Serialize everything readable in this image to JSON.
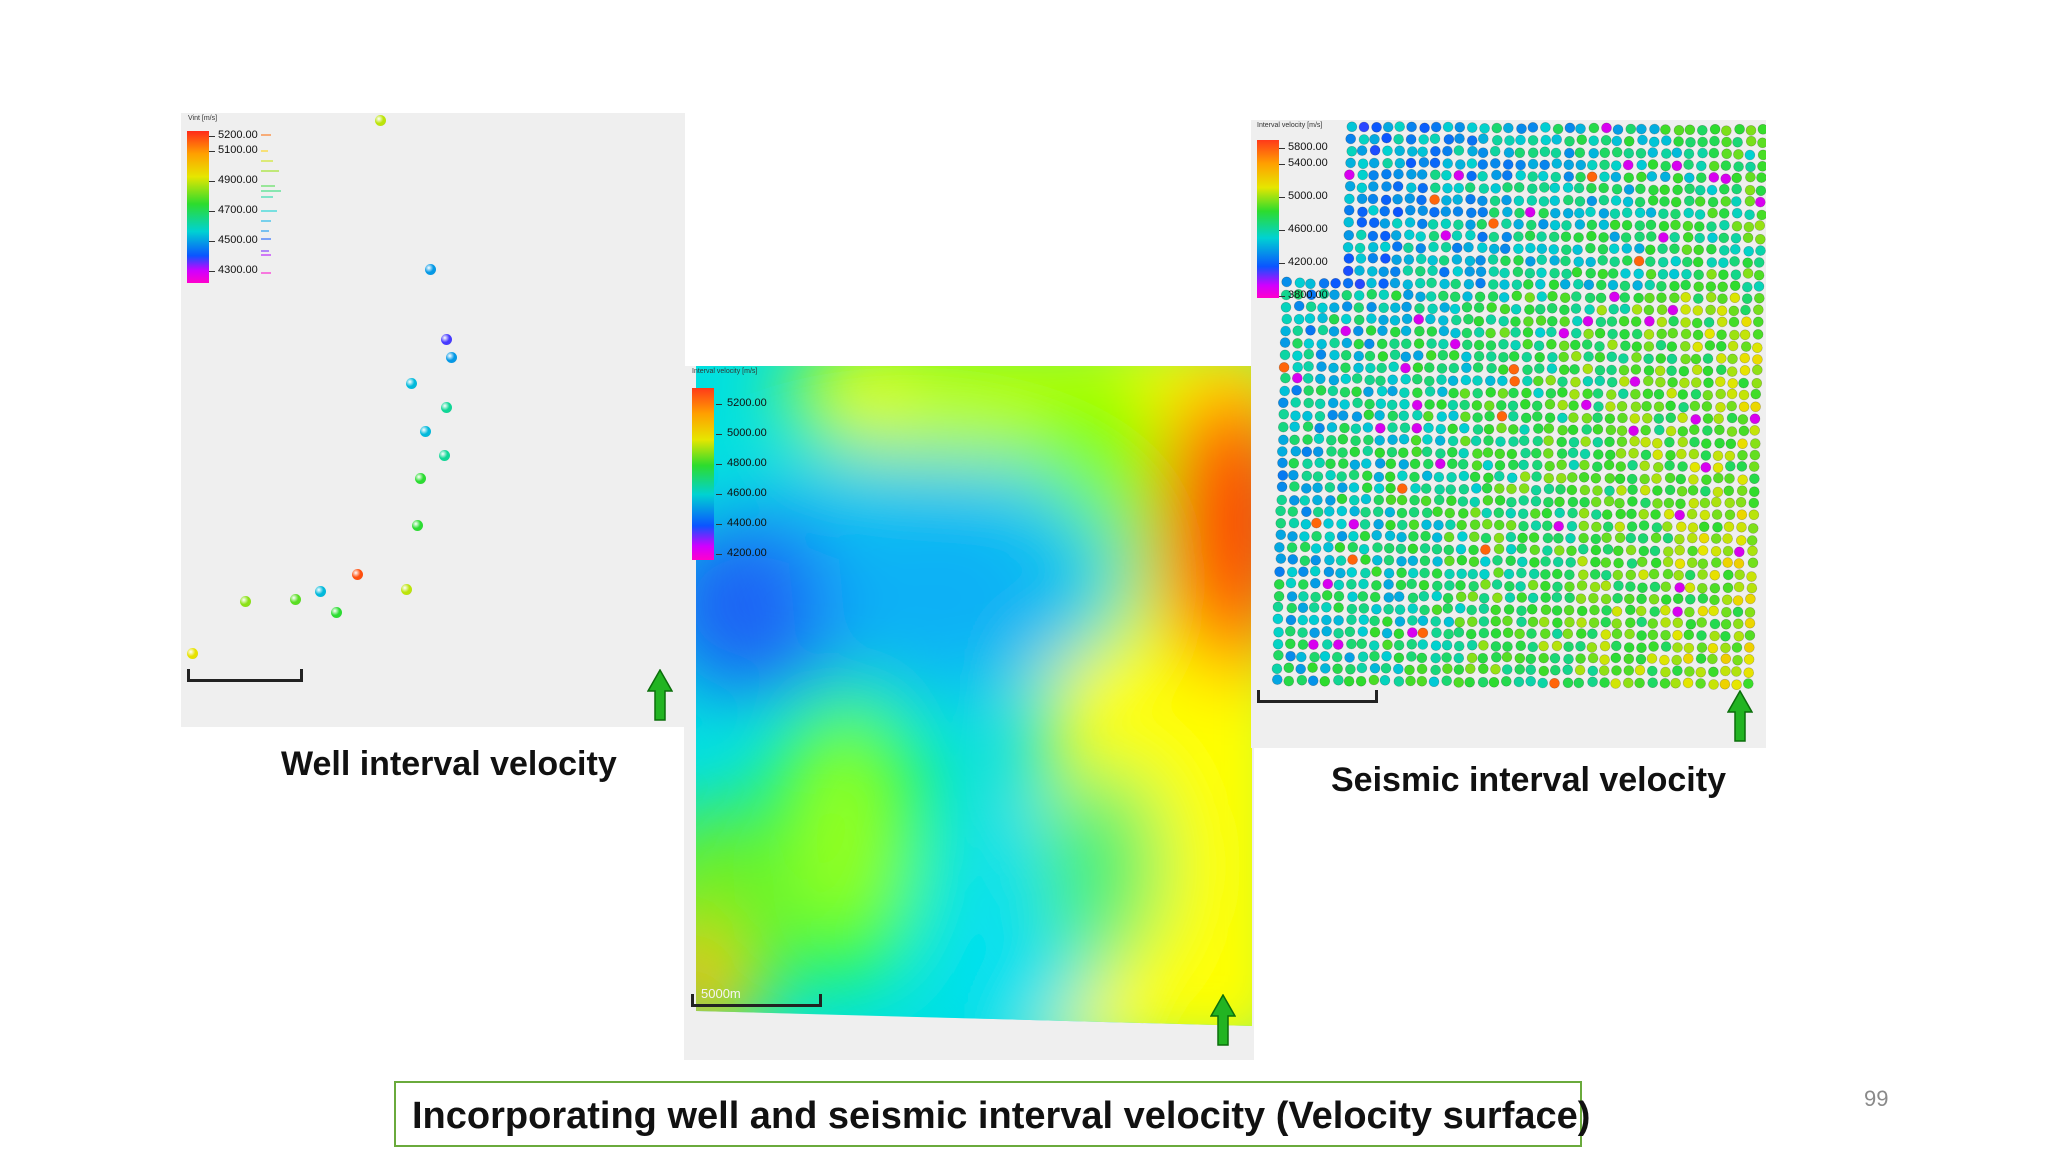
{
  "well_panel": {
    "legend_title": "Vint [m/s]",
    "legend_ticks": [
      "5200.00",
      "5100.00",
      "4900.00",
      "4700.00",
      "4500.00",
      "4300.00"
    ],
    "caption": "Well interval velocity",
    "points_vint": [
      4950,
      4550,
      4400,
      4550,
      4600,
      4700,
      4600,
      4700,
      4800,
      4800,
      5250,
      4850,
      4900,
      4600,
      4800,
      4950,
      5000
    ]
  },
  "surface_panel": {
    "legend_title": "Interval velocity [m/s]",
    "legend_ticks": [
      "5200.00",
      "5000.00",
      "4800.00",
      "4600.00",
      "4400.00",
      "4200.00"
    ],
    "scale_label": "5000m"
  },
  "seismic_panel": {
    "legend_title": "Interval velocity [m/s]",
    "legend_ticks": [
      "5800.00",
      "5400.00",
      "5000.00",
      "4600.00",
      "4200.00",
      "3800.00"
    ],
    "caption": "Seismic interval velocity"
  },
  "colors": {
    "accent_border": "#6aaa3c",
    "north_arrow": "#22b422"
  },
  "main_caption": "Incorporating well and seismic interval velocity (Velocity surface)",
  "page_number": "99"
}
